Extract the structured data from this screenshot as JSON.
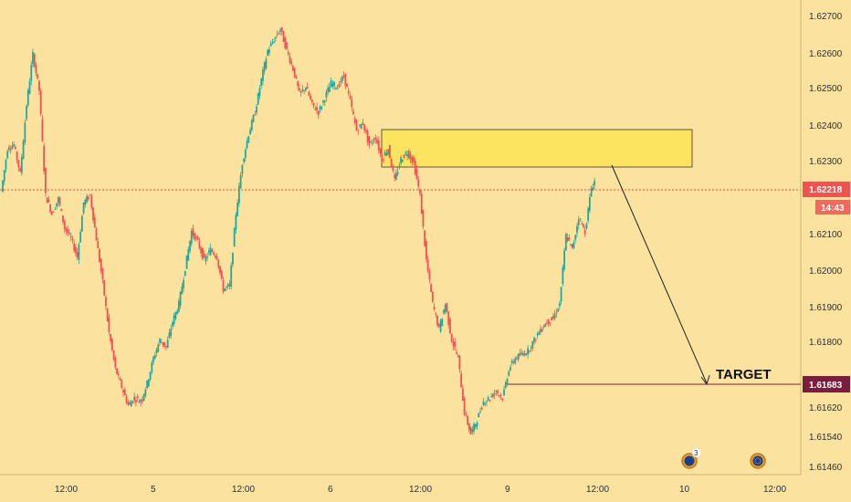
{
  "chart_data": {
    "type": "candlestick",
    "y_axis": {
      "ticks": [
        "1.62700",
        "1.62600",
        "1.62500",
        "1.62400",
        "1.62300",
        "1.62100",
        "1.62000",
        "1.61900",
        "1.61800",
        "1.61620",
        "1.61540",
        "1.61460"
      ],
      "ylim": [
        1.61428,
        1.6274
      ],
      "position": "right"
    },
    "x_axis": {
      "ticks": [
        "12:00",
        "5",
        "12:00",
        "6",
        "12:00",
        "9",
        "12:00",
        "10",
        "12:00"
      ]
    },
    "current_price": {
      "label": "1.62218",
      "countdown": "14:43",
      "value": 1.62218
    },
    "target": {
      "text": "TARGET",
      "price_label": "1.61683",
      "value": 1.61683
    },
    "zone": {
      "from": 1.62284,
      "to": 1.6239
    },
    "events": [
      {
        "badge": "3"
      }
    ],
    "path": [
      1.6221,
      1.6233,
      1.6234,
      1.6226,
      1.6245,
      1.6259,
      1.6249,
      1.622,
      1.6215,
      1.6219,
      1.6211,
      1.6208,
      1.6203,
      1.6218,
      1.622,
      1.6208,
      1.6196,
      1.6182,
      1.6172,
      1.6167,
      1.6162,
      1.6164,
      1.6163,
      1.6168,
      1.6175,
      1.618,
      1.6178,
      1.6185,
      1.619,
      1.62,
      1.621,
      1.6207,
      1.6202,
      1.6205,
      1.6203,
      1.6194,
      1.6195,
      1.6215,
      1.6229,
      1.6237,
      1.6243,
      1.6252,
      1.626,
      1.6263,
      1.6266,
      1.626,
      1.6255,
      1.6248,
      1.625,
      1.6245,
      1.6243,
      1.6247,
      1.6251,
      1.625,
      1.6253,
      1.6246,
      1.6238,
      1.624,
      1.6234,
      1.6236,
      1.623,
      1.6233,
      1.6224,
      1.623,
      1.6232,
      1.6229,
      1.622,
      1.6202,
      1.619,
      1.6183,
      1.619,
      1.618,
      1.6175,
      1.616,
      1.6154,
      1.6158,
      1.6163,
      1.6164,
      1.6166,
      1.6164,
      1.6172,
      1.6175,
      1.6176,
      1.6177,
      1.618,
      1.6183,
      1.6185,
      1.6186,
      1.619,
      1.6209,
      1.6205,
      1.6214,
      1.621,
      1.6222,
      1.6226,
      1.6222
    ],
    "x_start": 3,
    "x_step": 6.95
  },
  "colors": {
    "background": "#fbe29e",
    "up": "#26a69a",
    "down": "#ef5350",
    "zone_fill": "#fde45a",
    "target_badge": "#7b1d3d",
    "price_badge": "#ef5350"
  }
}
